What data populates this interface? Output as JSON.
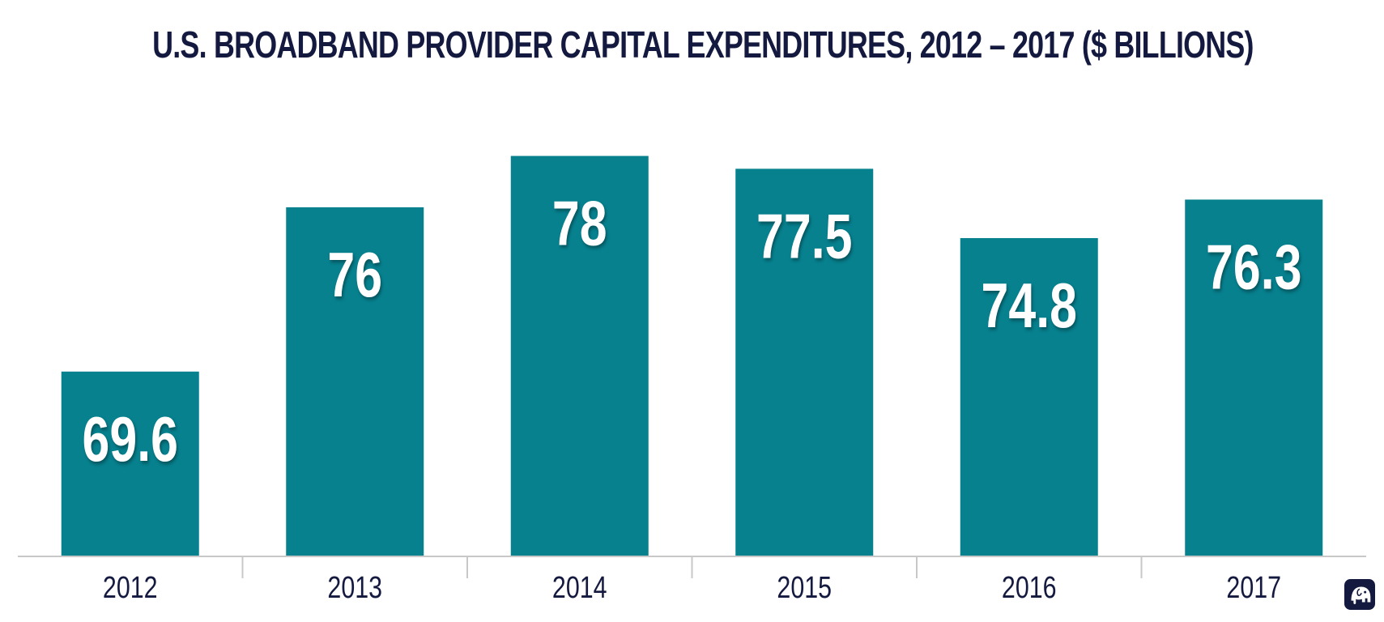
{
  "chart_data": {
    "type": "bar",
    "title": "U.S. BROADBAND PROVIDER CAPITAL EXPENDITURES, 2012 – 2017 ($ BILLIONS)",
    "categories": [
      "2012",
      "2013",
      "2014",
      "2015",
      "2016",
      "2017"
    ],
    "values": [
      69.6,
      76,
      78,
      77.5,
      74.8,
      76.3
    ],
    "value_labels": [
      "69.6",
      "76",
      "78",
      "77.5",
      "74.8",
      "76.3"
    ],
    "xlabel": "",
    "ylabel": "",
    "ylim": [
      62.4,
      79.5
    ],
    "grid": false,
    "legend": "none",
    "colors": {
      "bar": "#07818e",
      "title": "#14193f",
      "tick": "#14193f",
      "axis": "#c8c8c8",
      "value_label": "#ffffff"
    }
  },
  "brand": {
    "icon": "elephant-icon",
    "color": "#14193f"
  }
}
